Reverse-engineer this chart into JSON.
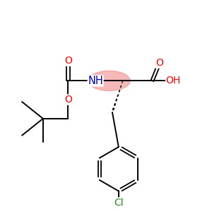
{
  "background_color": "#ffffff",
  "figure_size": [
    3.0,
    3.0
  ],
  "dpi": 100,
  "label_colors": {
    "O": "#ff0000",
    "N": "#0000cc",
    "Cl": "#228b22",
    "C": "#000000"
  },
  "highlight": {
    "color": "#f08080",
    "alpha": 0.55
  }
}
